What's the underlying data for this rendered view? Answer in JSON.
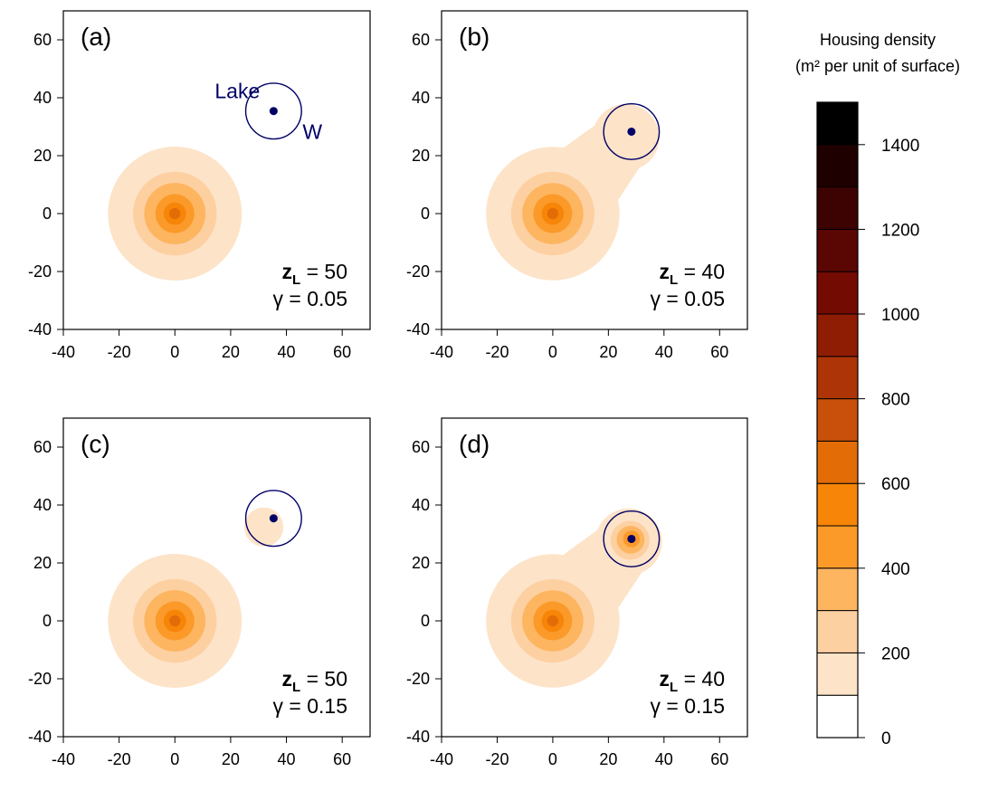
{
  "chart_data": {
    "type": "contour",
    "xlim": [
      -40,
      70
    ],
    "ylim": [
      -40,
      70
    ],
    "ticks": [
      "-40",
      "-20",
      "0",
      "20",
      "40",
      "60"
    ],
    "tick_values": [
      -40,
      -20,
      0,
      20,
      40,
      60
    ],
    "annotations": {
      "lake": "Lake",
      "w": "W",
      "z_symbol": "z",
      "z_subscript": "L",
      "gamma_symbol": "γ",
      "equals": "="
    },
    "city_center": [
      0,
      0
    ],
    "panels": [
      {
        "label": "(a)",
        "zL": "50",
        "gamma": "0.05",
        "lake_center": [
          35.4,
          35.4
        ],
        "lake_radius": 10,
        "city_levels": [
          {
            "radius": 24,
            "level": 0
          },
          {
            "radius": 15,
            "level": 1
          },
          {
            "radius": 11,
            "level": 2
          },
          {
            "radius": 7,
            "level": 3
          },
          {
            "radius": 4,
            "level": 4
          },
          {
            "radius": 2,
            "level": 5
          }
        ],
        "lake_levels": []
      },
      {
        "label": "(b)",
        "zL": "40",
        "gamma": "0.05",
        "lake_center": [
          28.3,
          28.3
        ],
        "lake_radius": 10,
        "city_levels": [
          {
            "radius": 24,
            "level": 0
          },
          {
            "radius": 15,
            "level": 1
          },
          {
            "radius": 11,
            "level": 2
          },
          {
            "radius": 7,
            "level": 3
          },
          {
            "radius": 4,
            "level": 4
          },
          {
            "radius": 2,
            "level": 5
          }
        ],
        "lake_levels": [
          {
            "dx": -2,
            "dy": -2,
            "radius": 12,
            "level": 0
          }
        ]
      },
      {
        "label": "(c)",
        "zL": "50",
        "gamma": "0.15",
        "lake_center": [
          35.4,
          35.4
        ],
        "lake_radius": 10,
        "city_levels": [
          {
            "radius": 24,
            "level": 0
          },
          {
            "radius": 15,
            "level": 1
          },
          {
            "radius": 11,
            "level": 2
          },
          {
            "radius": 7,
            "level": 3
          },
          {
            "radius": 4,
            "level": 4
          },
          {
            "radius": 2,
            "level": 5
          }
        ],
        "lake_levels": [
          {
            "dx": -3.5,
            "dy": -3,
            "radius": 7,
            "level": 0
          }
        ]
      },
      {
        "label": "(d)",
        "zL": "40",
        "gamma": "0.15",
        "lake_center": [
          28.3,
          28.3
        ],
        "lake_radius": 10,
        "city_levels": [
          {
            "radius": 24,
            "level": 0
          },
          {
            "radius": 15,
            "level": 1
          },
          {
            "radius": 11,
            "level": 2
          },
          {
            "radius": 7,
            "level": 3
          },
          {
            "radius": 4,
            "level": 4
          },
          {
            "radius": 2,
            "level": 5
          }
        ],
        "lake_levels": [
          {
            "dx": -1,
            "dy": -1,
            "radius": 12,
            "level": 0
          },
          {
            "dx": -0.5,
            "dy": -0.5,
            "radius": 7,
            "level": 1
          },
          {
            "dx": -0.3,
            "dy": -0.3,
            "radius": 5,
            "level": 2
          },
          {
            "dx": 0,
            "dy": 0,
            "radius": 3,
            "level": 3
          },
          {
            "dx": 0,
            "dy": 0,
            "radius": 1.5,
            "level": 5
          }
        ]
      }
    ],
    "colorbar": {
      "title_line1": "Housing density",
      "title_line2": "(m² per unit of surface)",
      "range": [
        0,
        1500
      ],
      "ticks": [
        "0",
        "200",
        "400",
        "600",
        "800",
        "1000",
        "1200",
        "1400"
      ],
      "tick_values": [
        0,
        200,
        400,
        600,
        800,
        1000,
        1200,
        1400
      ],
      "colors": [
        "#ffffff",
        "#fde3c8",
        "#fdd0a2",
        "#fdb560",
        "#fb9a29",
        "#f68508",
        "#e36c07",
        "#c9500a",
        "#ad3407",
        "#8f1d03",
        "#730b02",
        "#5a0603",
        "#3d0303",
        "#1f0000",
        "#000000"
      ]
    },
    "colors": {
      "lake": "#000066",
      "axis": "#000000"
    }
  }
}
